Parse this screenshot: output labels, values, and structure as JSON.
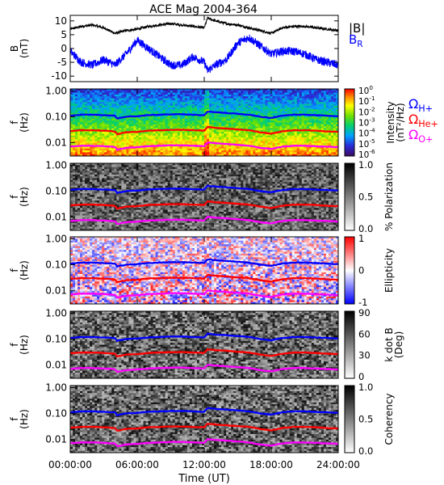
{
  "chart_data": {
    "type": "line",
    "title": "ACE Mag 2004-364",
    "xlabel": "Time (UT)",
    "xlim": [
      0,
      24
    ],
    "x_ticks": [
      "00:00:00",
      "06:00:00",
      "12:00:00",
      "18:00:00",
      "24:00:00"
    ],
    "panels": [
      {
        "kind": "line",
        "ylabel": [
          "B",
          "(nT)"
        ],
        "ylim": [
          -12,
          12
        ],
        "y_ticks": [
          "10",
          "5",
          "0",
          "-5",
          "-10"
        ],
        "y_tick_values": [
          10,
          5,
          0,
          -5,
          -10
        ],
        "series": [
          {
            "name": "|B|",
            "color": "#000000",
            "x": [
              0,
              1,
              2,
              3,
              4,
              5,
              6,
              7,
              8,
              9,
              10,
              11,
              12,
              12.3,
              13,
              14,
              15,
              16,
              17,
              18,
              19,
              20,
              21,
              22,
              23,
              24
            ],
            "values": [
              7,
              8,
              8.5,
              7.5,
              5.5,
              6.5,
              7,
              8,
              8.5,
              9,
              8.5,
              8,
              7.5,
              11,
              10,
              9,
              8.5,
              7.5,
              6.5,
              5.5,
              7.5,
              8,
              8,
              7.5,
              7,
              6.5
            ]
          },
          {
            "name": "B_R",
            "color": "#0000ff",
            "x": [
              0,
              1,
              2,
              3,
              4,
              5,
              6,
              7,
              8,
              9,
              10,
              11,
              12,
              12.3,
              13,
              14,
              15,
              16,
              17,
              18,
              19,
              20,
              21,
              22,
              23,
              24
            ],
            "values": [
              -1,
              -5,
              -6,
              -4,
              -6,
              -2,
              3,
              0,
              -3,
              -6,
              -6,
              -3,
              -5,
              -8,
              -6,
              -4,
              2,
              4,
              1,
              -2,
              -1,
              -1,
              -2,
              -4,
              -5,
              -6
            ]
          }
        ],
        "legend": [
          {
            "text": "|B|",
            "color": "#000000"
          },
          {
            "text": "B",
            "sub": "R",
            "color": "#0000ff"
          }
        ]
      },
      {
        "kind": "spectrogram",
        "ylabel": [
          "f",
          "(Hz)"
        ],
        "y_ticks": [
          "1.00",
          "0.10",
          "0.01"
        ],
        "palette": "rainbow",
        "colorbar_label": [
          "Intensity",
          "(nT²/Hz)"
        ],
        "colorbar_ticks": [
          {
            "text": "10",
            "sup": "0"
          },
          {
            "text": "10",
            "sup": "-1"
          },
          {
            "text": "10",
            "sup": "-2"
          },
          {
            "text": "10",
            "sup": "-3"
          },
          {
            "text": "10",
            "sup": "-4"
          },
          {
            "text": "10",
            "sup": "-5"
          },
          {
            "text": "10",
            "sup": "-6"
          }
        ],
        "legend": [
          {
            "text": "Ω",
            "sub": "H+",
            "color": "#0000ff"
          },
          {
            "text": "Ω",
            "sub": "He+",
            "color": "#ff0000"
          },
          {
            "text": "Ω",
            "sub": "O+",
            "color": "#ff00ff"
          }
        ]
      },
      {
        "kind": "spectrogram",
        "ylabel": [
          "f",
          "(Hz)"
        ],
        "y_ticks": [
          "1.00",
          "0.10",
          "0.01"
        ],
        "palette": "gray",
        "colorbar_label": [
          "% Polarization"
        ],
        "colorbar_ticks": [
          {
            "text": "1.0"
          },
          {
            "text": "0.5"
          },
          {
            "text": "0.0"
          }
        ]
      },
      {
        "kind": "spectrogram",
        "ylabel": [
          "f",
          "(Hz)"
        ],
        "y_ticks": [
          "1.00",
          "0.10",
          "0.01"
        ],
        "palette": "bwr",
        "colorbar_label": [
          "Ellipticity"
        ],
        "colorbar_ticks": [
          {
            "text": "1"
          },
          {
            "text": "0"
          },
          {
            "text": "-1"
          }
        ]
      },
      {
        "kind": "spectrogram",
        "ylabel": [
          "f",
          "(Hz)"
        ],
        "y_ticks": [
          "1.00",
          "0.10",
          "0.01"
        ],
        "palette": "gray",
        "colorbar_label": [
          "k dot B",
          "(Deg)"
        ],
        "colorbar_ticks": [
          {
            "text": "90"
          },
          {
            "text": "60"
          },
          {
            "text": "30"
          },
          {
            "text": "0"
          }
        ]
      },
      {
        "kind": "spectrogram",
        "ylabel": [
          "f",
          "(Hz)"
        ],
        "y_ticks": [
          "1.00",
          "0.10",
          "0.01"
        ],
        "palette": "gray",
        "colorbar_label": [
          "Coherency"
        ],
        "colorbar_ticks": [
          {
            "text": "1.0"
          },
          {
            "text": "0.5"
          },
          {
            "text": "0.0"
          }
        ]
      }
    ],
    "gyrofrequency_series": [
      {
        "name": "ΩH+",
        "color": "#0000ff",
        "x": [
          0,
          1,
          2,
          3,
          4,
          4.2,
          5,
          6,
          7,
          8,
          9,
          10,
          11,
          12,
          12.3,
          13,
          14,
          15,
          16,
          17,
          18,
          19,
          20,
          21,
          22,
          23,
          24
        ],
        "values": [
          0.11,
          0.12,
          0.12,
          0.115,
          0.11,
          0.085,
          0.1,
          0.105,
          0.115,
          0.12,
          0.125,
          0.125,
          0.12,
          0.115,
          0.16,
          0.15,
          0.14,
          0.13,
          0.12,
          0.1,
          0.09,
          0.11,
          0.12,
          0.12,
          0.115,
          0.11,
          0.105
        ]
      },
      {
        "name": "ΩHe+",
        "color": "#ff0000",
        "x": [
          0,
          1,
          2,
          3,
          4,
          4.2,
          5,
          6,
          7,
          8,
          9,
          10,
          11,
          12,
          12.3,
          13,
          14,
          15,
          16,
          17,
          18,
          19,
          20,
          21,
          22,
          23,
          24
        ],
        "values": [
          0.028,
          0.03,
          0.03,
          0.029,
          0.027,
          0.021,
          0.025,
          0.026,
          0.029,
          0.03,
          0.031,
          0.031,
          0.03,
          0.029,
          0.04,
          0.037,
          0.035,
          0.032,
          0.03,
          0.025,
          0.022,
          0.027,
          0.03,
          0.03,
          0.029,
          0.027,
          0.026
        ]
      },
      {
        "name": "ΩO+",
        "color": "#ff00ff",
        "x": [
          0,
          1,
          2,
          3,
          4,
          4.2,
          5,
          6,
          7,
          8,
          9,
          10,
          11,
          12,
          12.3,
          13,
          14,
          15,
          16,
          17,
          18,
          19,
          20,
          21,
          22,
          23,
          24
        ],
        "values": [
          0.007,
          0.0075,
          0.0075,
          0.0072,
          0.0068,
          0.0053,
          0.0062,
          0.0066,
          0.0072,
          0.0075,
          0.0078,
          0.0078,
          0.0075,
          0.0072,
          0.01,
          0.0094,
          0.0088,
          0.0081,
          0.0075,
          0.0062,
          0.0056,
          0.0069,
          0.0075,
          0.0075,
          0.0072,
          0.0069,
          0.0066
        ]
      }
    ],
    "y_scale_spectrograms": "log",
    "f_range": [
      0.003,
      1.2
    ]
  }
}
